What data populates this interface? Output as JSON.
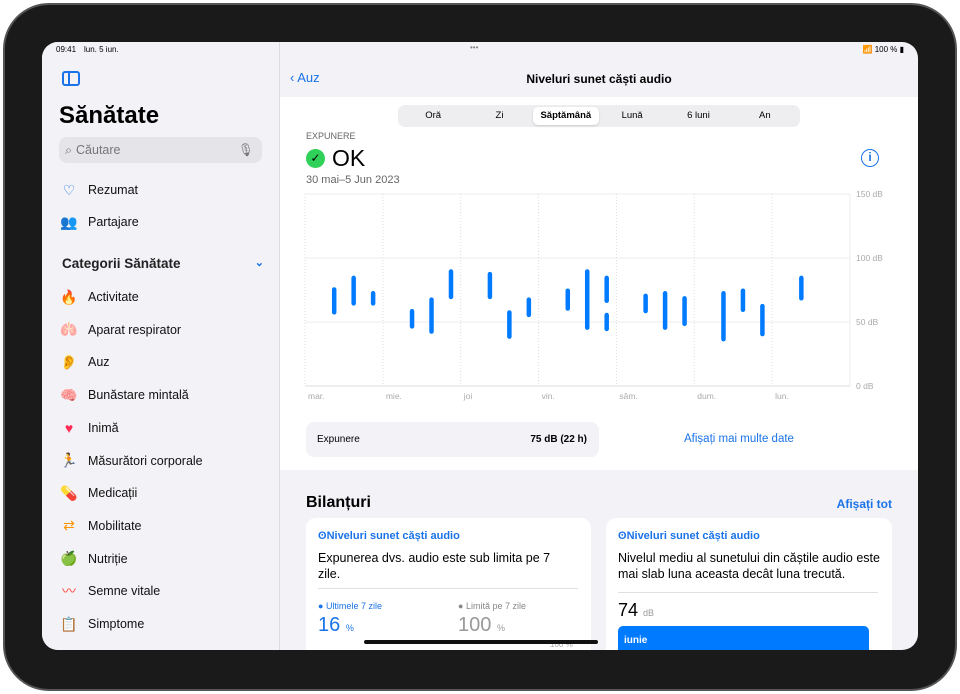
{
  "status": {
    "time": "09:41",
    "date": "lun. 5 iun.",
    "battery": "100 %"
  },
  "sidebar": {
    "title": "Sănătate",
    "search_placeholder": "Căutare",
    "top_items": [
      {
        "label": "Rezumat",
        "icon": "heart-outline-icon"
      },
      {
        "label": "Partajare",
        "icon": "people-icon"
      }
    ],
    "section": "Categorii Sănătate",
    "items": [
      {
        "label": "Activitate",
        "icon": "flame-icon",
        "color": "#ff3b30",
        "glyph": "🔥"
      },
      {
        "label": "Aparat respirator",
        "icon": "lungs-icon",
        "color": "#5ac8fa",
        "glyph": "🫁"
      },
      {
        "label": "Auz",
        "icon": "ear-icon",
        "color": "#5ac8fa",
        "glyph": "👂"
      },
      {
        "label": "Bunăstare mintală",
        "icon": "head-icon",
        "color": "#30c0b0",
        "glyph": "🧠"
      },
      {
        "label": "Inimă",
        "icon": "heart-icon",
        "color": "#ff2d55",
        "glyph": "♥"
      },
      {
        "label": "Măsurători corporale",
        "icon": "figure-icon",
        "color": "#af52de",
        "glyph": "🏃"
      },
      {
        "label": "Medicații",
        "icon": "pills-icon",
        "color": "#5ac8fa",
        "glyph": "💊"
      },
      {
        "label": "Mobilitate",
        "icon": "arrows-icon",
        "color": "#ff9500",
        "glyph": "⇄"
      },
      {
        "label": "Nutriție",
        "icon": "apple-icon",
        "color": "#34c759",
        "glyph": "🍏"
      },
      {
        "label": "Semne vitale",
        "icon": "waveform-icon",
        "color": "#ff3b30",
        "glyph": "〰"
      },
      {
        "label": "Simptome",
        "icon": "clipboard-icon",
        "color": "#5856d6",
        "glyph": "📋"
      }
    ]
  },
  "nav": {
    "back": "Auz",
    "title": "Niveluri sunet căști audio"
  },
  "segments": [
    "Oră",
    "Zi",
    "Săptămână",
    "Lună",
    "6 luni",
    "An"
  ],
  "selected_segment": "Săptămână",
  "summary": {
    "label": "EXPUNERE",
    "status": "OK",
    "range": "30 mai–5 Jun 2023"
  },
  "chart_data": {
    "type": "range-bar",
    "yticks": [
      "150 dB",
      "100 dB",
      "50 dB",
      "0 dB"
    ],
    "ylim": [
      0,
      150
    ],
    "unit": "dB",
    "categories": [
      "mar.",
      "mie.",
      "joi",
      "vin.",
      "sâm.",
      "dum.",
      "lun."
    ],
    "bars": [
      {
        "day": 0,
        "hour": 9,
        "low": 56,
        "high": 77
      },
      {
        "day": 0,
        "hour": 15,
        "low": 63,
        "high": 86
      },
      {
        "day": 0,
        "hour": 21,
        "low": 63,
        "high": 74
      },
      {
        "day": 1,
        "hour": 9,
        "low": 45,
        "high": 60
      },
      {
        "day": 1,
        "hour": 15,
        "low": 41,
        "high": 69
      },
      {
        "day": 1,
        "hour": 21,
        "low": 68,
        "high": 91
      },
      {
        "day": 2,
        "hour": 9,
        "low": 68,
        "high": 89
      },
      {
        "day": 2,
        "hour": 15,
        "low": 37,
        "high": 59
      },
      {
        "day": 2,
        "hour": 21,
        "low": 54,
        "high": 69
      },
      {
        "day": 3,
        "hour": 9,
        "low": 59,
        "high": 76
      },
      {
        "day": 3,
        "hour": 15,
        "low": 44,
        "high": 91
      },
      {
        "day": 3,
        "hour": 21,
        "low": 65,
        "high": 86
      },
      {
        "day": 3,
        "hour": 21,
        "low": 43,
        "high": 57
      },
      {
        "day": 4,
        "hour": 9,
        "low": 57,
        "high": 72
      },
      {
        "day": 4,
        "hour": 15,
        "low": 44,
        "high": 74
      },
      {
        "day": 4,
        "hour": 21,
        "low": 47,
        "high": 70
      },
      {
        "day": 5,
        "hour": 9,
        "low": 35,
        "high": 74
      },
      {
        "day": 5,
        "hour": 15,
        "low": 58,
        "high": 76
      },
      {
        "day": 5,
        "hour": 21,
        "low": 39,
        "high": 64
      },
      {
        "day": 6,
        "hour": 9,
        "low": 67,
        "high": 86
      }
    ],
    "color": "#007aff",
    "grid": true
  },
  "exposure_row": {
    "label": "Expunere",
    "value": "75 dB (22 h)",
    "more": "Afișați mai multe date"
  },
  "highlights": {
    "title": "Bilanțuri",
    "show_all": "Afișați tot",
    "card1": {
      "title": "Niveluri sunet căști audio",
      "text": "Expunerea dvs. audio este sub limita pe 7 zile.",
      "left_label": "Ultimele 7 zile",
      "left_value": "16",
      "left_unit": "%",
      "right_label": "Limită pe 7 zile",
      "right_value": "100",
      "right_unit": "%",
      "axis": "100 %"
    },
    "card2": {
      "title": "Niveluri sunet căști audio",
      "text": "Nivelul mediu al sunetului din căștile audio este mai slab luna aceasta decât luna trecută.",
      "value": "74",
      "unit": "dB",
      "bar_label": "iunie"
    }
  }
}
